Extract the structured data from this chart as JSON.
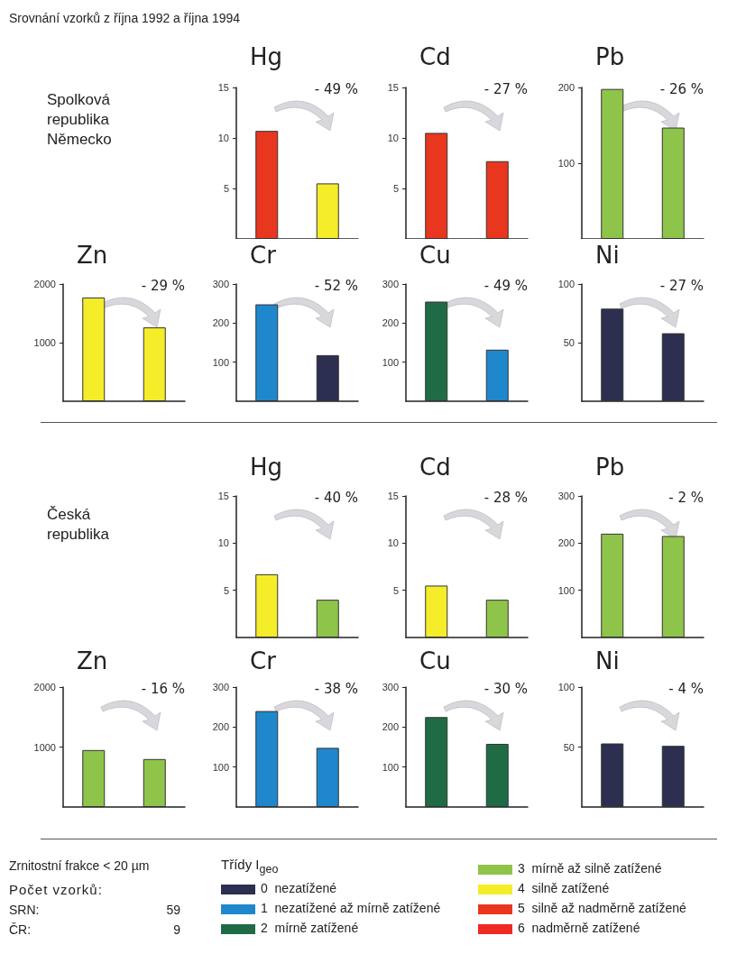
{
  "chart_data": [
    {
      "type": "other",
      "title": "Srovnání vzorků z října 1992 a října 1994",
      "annotations": [
        "Spolková republika Německo",
        "Česká republika"
      ]
    },
    {
      "type": "bar",
      "title": "Hg",
      "categories": [
        null,
        null
      ],
      "values": [
        10.7,
        5.5
      ],
      "colors": [
        "#e8361f",
        "#f5ec2a"
      ],
      "ylim": [
        0,
        15
      ],
      "yticks": [
        5,
        10,
        15
      ],
      "tick_labels": "y",
      "grid": false,
      "annotations": [
        "- 49 %"
      ]
    },
    {
      "type": "bar",
      "title": "Cd",
      "categories": [
        null,
        null
      ],
      "values": [
        10.5,
        7.7
      ],
      "colors": [
        "#e8361f",
        "#e8361f"
      ],
      "ylim": [
        0,
        15
      ],
      "yticks": [
        5,
        10,
        15
      ],
      "tick_labels": "y",
      "grid": false,
      "annotations": [
        "- 27 %"
      ]
    },
    {
      "type": "bar",
      "title": "Pb",
      "categories": [
        null,
        null
      ],
      "values": [
        198,
        147
      ],
      "colors": [
        "#8fc44a",
        "#8fc44a"
      ],
      "ylim": [
        0,
        200
      ],
      "yticks": [
        100,
        200
      ],
      "tick_labels": "y",
      "grid": false,
      "annotations": [
        "- 26 %"
      ]
    },
    {
      "type": "bar",
      "title": "Zn",
      "categories": [
        null,
        null
      ],
      "values": [
        1770,
        1260
      ],
      "colors": [
        "#f5ec2a",
        "#f5ec2a"
      ],
      "ylim": [
        0,
        2000
      ],
      "yticks": [
        1000,
        2000
      ],
      "tick_labels": "y",
      "grid": false,
      "annotations": [
        "- 29 %"
      ]
    },
    {
      "type": "bar",
      "title": "Cr",
      "categories": [
        null,
        null
      ],
      "values": [
        248,
        118
      ],
      "colors": [
        "#1f87cc",
        "#2c2f4f"
      ],
      "ylim": [
        0,
        300
      ],
      "yticks": [
        100,
        200,
        300
      ],
      "tick_labels": "y",
      "grid": false,
      "annotations": [
        "- 52 %"
      ]
    },
    {
      "type": "bar",
      "title": "Cu",
      "categories": [
        null,
        null
      ],
      "values": [
        255,
        132
      ],
      "colors": [
        "#1f6b45",
        "#1f87cc"
      ],
      "ylim": [
        0,
        300
      ],
      "yticks": [
        100,
        200,
        300
      ],
      "tick_labels": "y",
      "grid": false,
      "annotations": [
        "- 49 %"
      ]
    },
    {
      "type": "bar",
      "title": "Ni",
      "categories": [
        null,
        null
      ],
      "values": [
        79,
        58
      ],
      "colors": [
        "#2c2f4f",
        "#2c2f4f"
      ],
      "ylim": [
        0,
        100
      ],
      "yticks": [
        50,
        100
      ],
      "tick_labels": "y",
      "grid": false,
      "annotations": [
        "- 27 %"
      ]
    },
    {
      "type": "bar",
      "title": "Hg",
      "categories": [
        null,
        null
      ],
      "values": [
        6.7,
        4.0
      ],
      "colors": [
        "#f5ec2a",
        "#8fc44a"
      ],
      "ylim": [
        0,
        15
      ],
      "yticks": [
        5,
        10,
        15
      ],
      "tick_labels": "y",
      "grid": false,
      "annotations": [
        "- 40 %"
      ]
    },
    {
      "type": "bar",
      "title": "Cd",
      "categories": [
        null,
        null
      ],
      "values": [
        5.5,
        4.0
      ],
      "colors": [
        "#f5ec2a",
        "#8fc44a"
      ],
      "ylim": [
        0,
        15
      ],
      "yticks": [
        5,
        10,
        15
      ],
      "tick_labels": "y",
      "grid": false,
      "annotations": [
        "- 28 %"
      ]
    },
    {
      "type": "bar",
      "title": "Pb",
      "categories": [
        null,
        null
      ],
      "values": [
        220,
        215
      ],
      "colors": [
        "#8fc44a",
        "#8fc44a"
      ],
      "ylim": [
        0,
        300
      ],
      "yticks": [
        100,
        200,
        300
      ],
      "tick_labels": "y",
      "grid": false,
      "annotations": [
        "- 2 %"
      ]
    },
    {
      "type": "bar",
      "title": "Zn",
      "categories": [
        null,
        null
      ],
      "values": [
        950,
        800
      ],
      "colors": [
        "#8fc44a",
        "#8fc44a"
      ],
      "ylim": [
        0,
        2000
      ],
      "yticks": [
        1000,
        2000
      ],
      "tick_labels": "y",
      "grid": false,
      "annotations": [
        "- 16 %"
      ]
    },
    {
      "type": "bar",
      "title": "Cr",
      "categories": [
        null,
        null
      ],
      "values": [
        240,
        148
      ],
      "colors": [
        "#1f87cc",
        "#1f87cc"
      ],
      "ylim": [
        0,
        300
      ],
      "yticks": [
        100,
        200,
        300
      ],
      "tick_labels": "y",
      "grid": false,
      "annotations": [
        "- 38 %"
      ]
    },
    {
      "type": "bar",
      "title": "Cu",
      "categories": [
        null,
        null
      ],
      "values": [
        225,
        158
      ],
      "colors": [
        "#1f6b45",
        "#1f6b45"
      ],
      "ylim": [
        0,
        300
      ],
      "yticks": [
        100,
        200,
        300
      ],
      "tick_labels": "y",
      "grid": false,
      "annotations": [
        "- 30 %"
      ]
    },
    {
      "type": "bar",
      "title": "Ni",
      "categories": [
        null,
        null
      ],
      "values": [
        53,
        51
      ],
      "colors": [
        "#2c2f4f",
        "#2c2f4f"
      ],
      "ylim": [
        0,
        100
      ],
      "yticks": [
        50,
        100
      ],
      "tick_labels": "y",
      "grid": false,
      "annotations": [
        "- 4 %"
      ]
    },
    {
      "type": "other",
      "title": "Třídy I$_{geo}$",
      "categories": [
        "0  nezatížené",
        "1  nezatížené až mírně zatížené",
        "2  mírně zatížené",
        "3  mírně až silně zatížené",
        "4  silně zatížené",
        "5  silně až nadměrně zatížené",
        "6  nadměrně zatížené"
      ],
      "colors": [
        "#2c2f4f",
        "#1f87cc",
        "#1f6b45",
        "#8fc44a",
        "#f5ec2a",
        "#e8361f",
        "#ee2a22"
      ],
      "annotations": [
        "Zrnitostní frakce < 20 µm",
        "Počet vzorků:",
        "SRN:",
        "59",
        "ČR:",
        "9"
      ]
    }
  ]
}
